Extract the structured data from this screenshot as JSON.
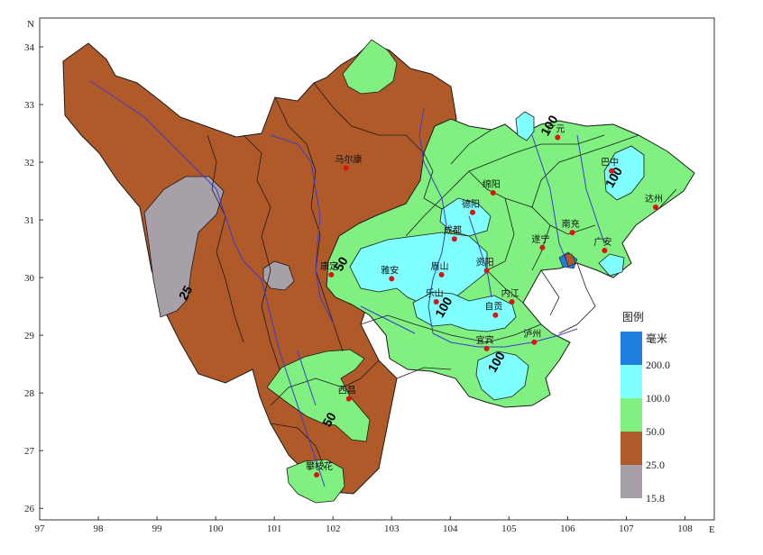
{
  "axes": {
    "x_ticks": [
      "97",
      "98",
      "99",
      "100",
      "101",
      "102",
      "103",
      "104",
      "105",
      "106",
      "107",
      "108"
    ],
    "y_ticks": [
      "34",
      "33",
      "32",
      "31",
      "30",
      "29",
      "28",
      "27",
      "26"
    ],
    "x_axis_letter": "E",
    "y_axis_letter": "N",
    "xlim": [
      97,
      108.5
    ],
    "ylim": [
      25.8,
      34.5
    ]
  },
  "legend": {
    "title": "图例",
    "unit": "毫米",
    "levels": [
      {
        "label": "200.0",
        "color": "#1e7fe0"
      },
      {
        "label": "100.0",
        "color": "#7fffff"
      },
      {
        "label": "50.0",
        "color": "#80f080"
      },
      {
        "label": "25.0",
        "color": "#b05a2a"
      },
      {
        "label": "15.8",
        "color": "#a8a0a8"
      }
    ]
  },
  "colors": {
    "lt25": "#a8a0a8",
    "r25_50": "#b05a2a",
    "r50_100": "#80f080",
    "r100_200": "#7fffff",
    "gt200": "#1e7fe0",
    "boundary": "#1a1a1a",
    "river": "#3c3cd0",
    "city_dot": "#e01010"
  },
  "contour_labels": [
    {
      "text": "25",
      "lon": 99.55,
      "lat": 29.7
    },
    {
      "text": "50",
      "lon": 102.2,
      "lat": 30.2
    },
    {
      "text": "100",
      "lon": 103.95,
      "lat": 29.45
    },
    {
      "text": "100",
      "lon": 104.85,
      "lat": 28.5
    },
    {
      "text": "100",
      "lon": 105.75,
      "lat": 32.6
    },
    {
      "text": "100",
      "lon": 106.85,
      "lat": 31.7
    },
    {
      "text": "50",
      "lon": 102.0,
      "lat": 27.5
    }
  ],
  "cities": [
    {
      "name": "马尔康",
      "lon": 102.22,
      "lat": 31.9
    },
    {
      "name": "康定",
      "lon": 101.97,
      "lat": 30.05
    },
    {
      "name": "西昌",
      "lon": 102.27,
      "lat": 27.9
    },
    {
      "name": "攀枝花",
      "lon": 101.72,
      "lat": 26.58
    },
    {
      "name": "雅安",
      "lon": 103.0,
      "lat": 29.98
    },
    {
      "name": "成都",
      "lon": 104.07,
      "lat": 30.67
    },
    {
      "name": "德阳",
      "lon": 104.38,
      "lat": 31.13
    },
    {
      "name": "绵阳",
      "lon": 104.73,
      "lat": 31.47
    },
    {
      "name": "广元",
      "lon": 105.83,
      "lat": 32.43
    },
    {
      "name": "巴中",
      "lon": 106.75,
      "lat": 31.85
    },
    {
      "name": "达州",
      "lon": 107.5,
      "lat": 31.22
    },
    {
      "name": "南充",
      "lon": 106.08,
      "lat": 30.78
    },
    {
      "name": "遂宁",
      "lon": 105.57,
      "lat": 30.52
    },
    {
      "name": "广安",
      "lon": 106.63,
      "lat": 30.47
    },
    {
      "name": "资阳",
      "lon": 104.62,
      "lat": 30.12
    },
    {
      "name": "眉山",
      "lon": 103.85,
      "lat": 30.05
    },
    {
      "name": "乐山",
      "lon": 103.76,
      "lat": 29.58
    },
    {
      "name": "内江",
      "lon": 105.05,
      "lat": 29.58
    },
    {
      "name": "自贡",
      "lon": 104.77,
      "lat": 29.35
    },
    {
      "name": "宜宾",
      "lon": 104.62,
      "lat": 28.77
    },
    {
      "name": "泸州",
      "lon": 105.43,
      "lat": 28.88
    }
  ]
}
